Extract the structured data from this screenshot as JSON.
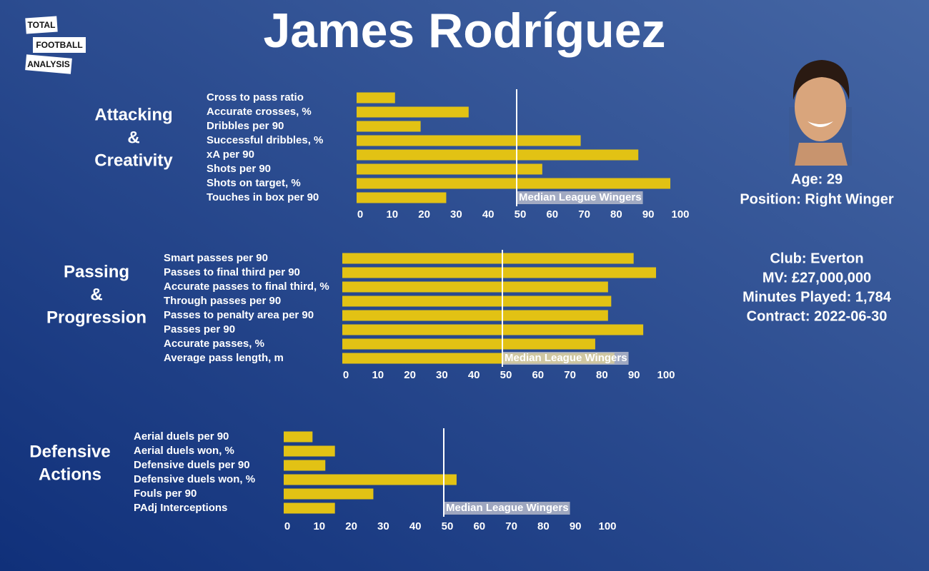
{
  "header": {
    "title": "James Rodríguez",
    "logo": [
      "TOTAL",
      "FOOTBALL",
      "ANALYSIS"
    ]
  },
  "player": {
    "lines_top": [
      "Age: 29",
      "Position: Right Winger"
    ],
    "lines_bottom": [
      "Club: Everton",
      "MV: £27,000,000",
      "Minutes Played: 1,784",
      "Contract: 2022-06-30"
    ]
  },
  "chart_data": [
    {
      "type": "bar",
      "orientation": "horizontal",
      "title": [
        "Attacking",
        "&",
        "Creativity"
      ],
      "categories": [
        "Cross to pass ratio",
        "Accurate crosses, %",
        "Dribbles per 90",
        "Successful dribbles, %",
        "xA per 90",
        "Shots per 90",
        "Shots on target, %",
        "Touches in box per 90"
      ],
      "values": [
        12,
        35,
        20,
        70,
        88,
        58,
        98,
        28
      ],
      "color": "#e2c214",
      "xlim": [
        0,
        100
      ],
      "xticks": [
        0,
        10,
        20,
        30,
        40,
        50,
        60,
        70,
        80,
        90,
        100
      ],
      "median": {
        "value": 50,
        "label": "Median League Wingers"
      }
    },
    {
      "type": "bar",
      "orientation": "horizontal",
      "title": [
        "Passing",
        "&",
        "Progression"
      ],
      "categories": [
        "Smart passes per 90",
        "Passes to final third per 90",
        "Accurate passes to final third, %",
        "Through passes per 90",
        "Passes to penalty area per 90",
        "Passes per 90",
        "Accurate passes, %",
        "Average pass length, m"
      ],
      "values": [
        91,
        98,
        83,
        84,
        83,
        94,
        79,
        85
      ],
      "color": "#e2c214",
      "xlim": [
        0,
        100
      ],
      "xticks": [
        0,
        10,
        20,
        30,
        40,
        50,
        60,
        70,
        80,
        90,
        100
      ],
      "median": {
        "value": 50,
        "label": "Median League Wingers"
      }
    },
    {
      "type": "bar",
      "orientation": "horizontal",
      "title": [
        "Defensive",
        "Actions"
      ],
      "categories": [
        "Aerial duels per 90",
        "Aerial duels won, %",
        "Defensive duels per 90",
        "Defensive duels won, %",
        "Fouls per 90",
        "PAdj Interceptions"
      ],
      "values": [
        9,
        16,
        13,
        54,
        28,
        16
      ],
      "color": "#e2c214",
      "xlim": [
        0,
        100
      ],
      "xticks": [
        0,
        10,
        20,
        30,
        40,
        50,
        60,
        70,
        80,
        90,
        100
      ],
      "median": {
        "value": 50,
        "label": "Median League Wingers"
      }
    }
  ]
}
